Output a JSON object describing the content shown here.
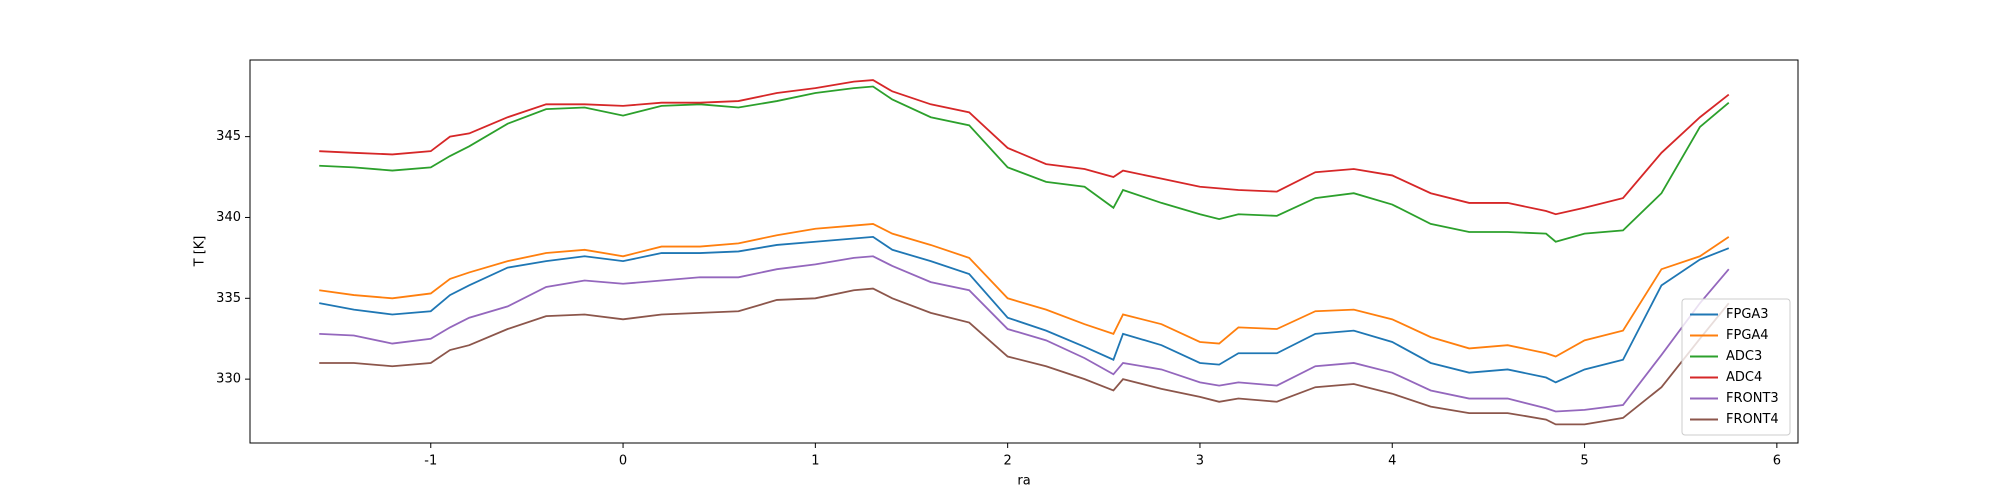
{
  "chart_data": {
    "type": "line",
    "xlabel": "ra",
    "ylabel": "T [K]",
    "x": [
      -1.58,
      -1.4,
      -1.2,
      -1.0,
      -0.9,
      -0.8,
      -0.6,
      -0.4,
      -0.2,
      0,
      0.2,
      0.4,
      0.6,
      0.8,
      1.0,
      1.2,
      1.3,
      1.4,
      1.6,
      1.8,
      2.0,
      2.2,
      2.4,
      2.55,
      2.6,
      2.8,
      3.0,
      3.1,
      3.2,
      3.4,
      3.6,
      3.8,
      4.0,
      4.2,
      4.4,
      4.6,
      4.8,
      4.85,
      5.0,
      5.2,
      5.4,
      5.6,
      5.75
    ],
    "series": [
      {
        "name": "FPGA3",
        "color": "#1f77b4",
        "values": [
          334.7,
          334.3,
          334.0,
          334.2,
          335.2,
          335.8,
          336.9,
          337.3,
          337.6,
          337.3,
          337.8,
          337.8,
          337.9,
          338.3,
          338.5,
          338.7,
          338.8,
          338.0,
          337.3,
          336.5,
          333.8,
          333.0,
          332.0,
          331.2,
          332.8,
          332.1,
          331.0,
          330.9,
          331.6,
          331.6,
          332.8,
          333.0,
          332.3,
          331.0,
          330.4,
          330.6,
          330.1,
          329.8,
          330.6,
          331.2,
          335.8,
          337.4,
          338.1
        ]
      },
      {
        "name": "FPGA4",
        "color": "#ff7f0e",
        "values": [
          335.5,
          335.2,
          335.0,
          335.3,
          336.2,
          336.6,
          337.3,
          337.8,
          338.0,
          337.6,
          338.2,
          338.2,
          338.4,
          338.9,
          339.3,
          339.5,
          339.6,
          339.0,
          338.3,
          337.5,
          335.0,
          334.3,
          333.4,
          332.8,
          334.0,
          333.4,
          332.3,
          332.2,
          333.2,
          333.1,
          334.2,
          334.3,
          333.7,
          332.6,
          331.9,
          332.1,
          331.6,
          331.4,
          332.4,
          333.0,
          336.8,
          337.6,
          338.8
        ]
      },
      {
        "name": "ADC3",
        "color": "#2ca02c",
        "values": [
          343.2,
          343.1,
          342.9,
          343.1,
          343.8,
          344.4,
          345.8,
          346.7,
          346.8,
          346.3,
          346.9,
          347.0,
          346.8,
          347.2,
          347.7,
          348.0,
          348.1,
          347.3,
          346.2,
          345.7,
          343.1,
          342.2,
          341.9,
          340.6,
          341.7,
          340.9,
          340.2,
          339.9,
          340.2,
          340.1,
          341.2,
          341.5,
          340.8,
          339.6,
          339.1,
          339.1,
          339.0,
          338.5,
          339.0,
          339.2,
          341.5,
          345.6,
          347.1
        ]
      },
      {
        "name": "ADC4",
        "color": "#d62728",
        "values": [
          344.1,
          344.0,
          343.9,
          344.1,
          345.0,
          345.2,
          346.2,
          347.0,
          347.0,
          346.9,
          347.1,
          347.1,
          347.2,
          347.7,
          348.0,
          348.4,
          348.5,
          347.8,
          347.0,
          346.5,
          344.3,
          343.3,
          343.0,
          342.5,
          342.9,
          342.4,
          341.9,
          341.8,
          341.7,
          341.6,
          342.8,
          343.0,
          342.6,
          341.5,
          340.9,
          340.9,
          340.4,
          340.2,
          340.6,
          341.2,
          344.0,
          346.2,
          347.6
        ]
      },
      {
        "name": "FRONT3",
        "color": "#9467bd",
        "values": [
          332.8,
          332.7,
          332.2,
          332.5,
          333.2,
          333.8,
          334.5,
          335.7,
          336.1,
          335.9,
          336.1,
          336.3,
          336.3,
          336.8,
          337.1,
          337.5,
          337.6,
          337.0,
          336.0,
          335.5,
          333.1,
          332.4,
          331.3,
          330.3,
          331.0,
          330.6,
          329.8,
          329.6,
          329.8,
          329.6,
          330.8,
          331.0,
          330.4,
          329.3,
          328.8,
          328.8,
          328.2,
          328.0,
          328.1,
          328.4,
          331.5,
          334.7,
          336.8
        ]
      },
      {
        "name": "FRONT4",
        "color": "#8c564b",
        "values": [
          331.0,
          331.0,
          330.8,
          331.0,
          331.8,
          332.1,
          333.1,
          333.9,
          334.0,
          333.7,
          334.0,
          334.1,
          334.2,
          334.9,
          335.0,
          335.5,
          335.6,
          335.0,
          334.1,
          333.5,
          331.4,
          330.8,
          330.0,
          329.3,
          330.0,
          329.4,
          328.9,
          328.6,
          328.8,
          328.6,
          329.5,
          329.7,
          329.1,
          328.3,
          327.9,
          327.9,
          327.5,
          327.2,
          327.2,
          327.6,
          329.5,
          332.5,
          334.7
        ]
      }
    ],
    "xlim": [
      -1.94,
      6.11
    ],
    "ylim": [
      326.05,
      349.74
    ],
    "xticks": [
      -1,
      0,
      1,
      2,
      3,
      4,
      5,
      6
    ],
    "yticks": [
      330,
      335,
      340,
      345
    ],
    "grid": false,
    "legend": "lower right"
  }
}
